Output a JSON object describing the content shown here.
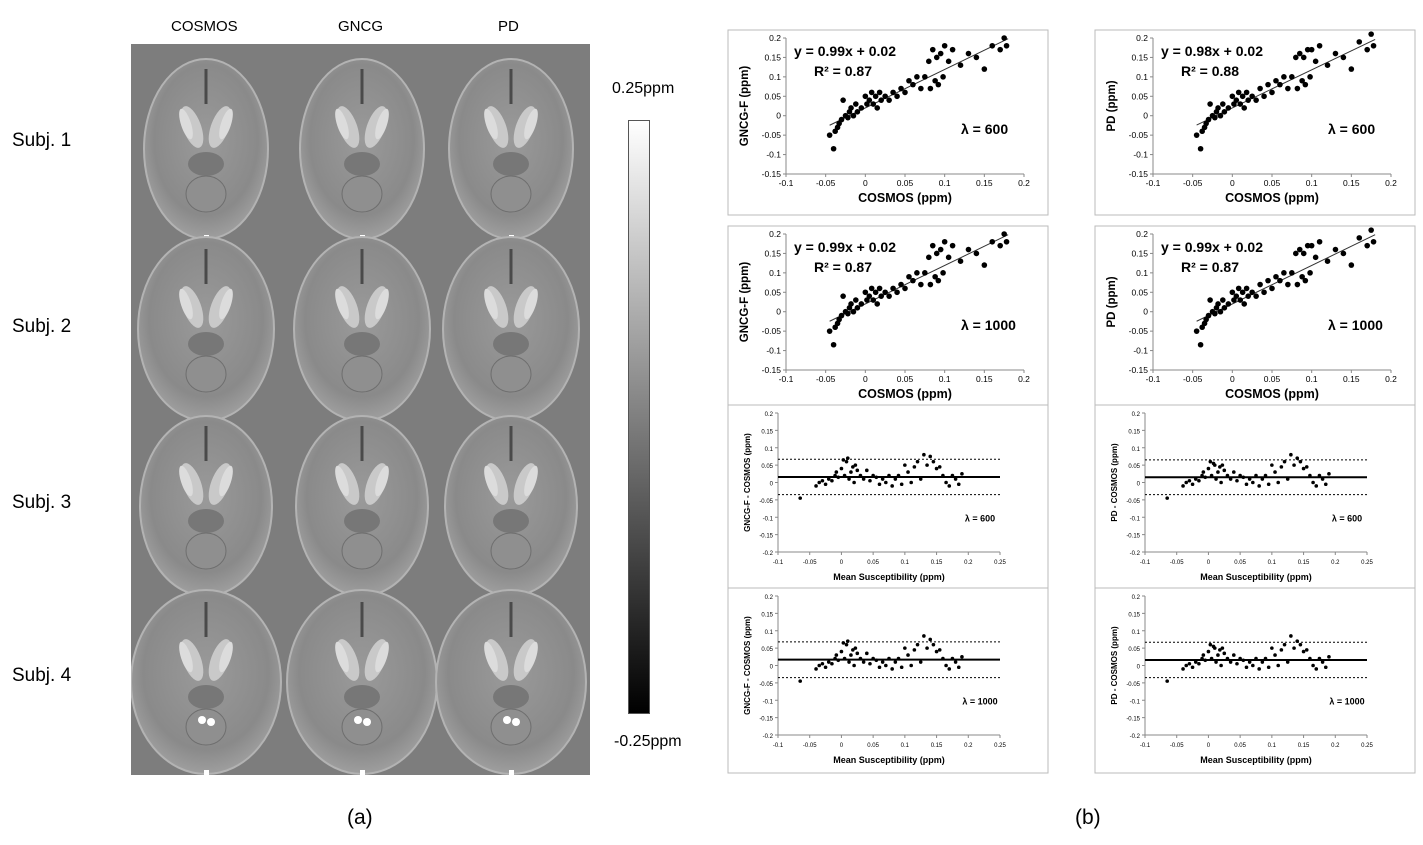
{
  "figure": {
    "panel_a": {
      "label": "(a)",
      "columns": [
        "COSMOS",
        "GNCG",
        "PD"
      ],
      "rows": [
        "Subj. 1",
        "Subj. 2",
        "Subj. 3",
        "Subj. 4"
      ],
      "colorbar": {
        "max_label": "0.25ppm",
        "min_label": "-0.25ppm"
      }
    },
    "panel_b": {
      "label": "(b)"
    }
  },
  "chart_data": [
    {
      "type": "scatter",
      "xlabel": "COSMOS (ppm)",
      "ylabel": "GNCG-F (ppm)",
      "xlim": [
        -0.1,
        0.2
      ],
      "ylim": [
        -0.15,
        0.2
      ],
      "xticks": [
        "-0.1",
        "-0.05",
        "0",
        "0.05",
        "0.1",
        "0.15",
        "0.2"
      ],
      "yticks": [
        "-0.15",
        "-0.1",
        "-0.05",
        "0",
        "0.05",
        "0.1",
        "0.15",
        "0.2"
      ],
      "annotations": [
        "y = 0.99x + 0.02",
        "R² = 0.87",
        "λ = 600"
      ],
      "fit": {
        "slope": 0.99,
        "intercept": 0.02
      },
      "x": [
        -0.045,
        -0.04,
        -0.038,
        -0.035,
        -0.033,
        -0.03,
        -0.028,
        -0.025,
        -0.022,
        -0.02,
        -0.018,
        -0.015,
        -0.012,
        -0.01,
        -0.005,
        0,
        0.002,
        0.005,
        0.008,
        0.01,
        0.013,
        0.015,
        0.018,
        0.02,
        0.025,
        0.03,
        0.035,
        0.04,
        0.045,
        0.05,
        0.055,
        0.06,
        0.065,
        0.07,
        0.075,
        0.08,
        0.082,
        0.085,
        0.088,
        0.09,
        0.092,
        0.095,
        0.098,
        0.1,
        0.105,
        0.11,
        0.12,
        0.13,
        0.14,
        0.15,
        0.16,
        0.17,
        0.175,
        0.178
      ],
      "y": [
        -0.05,
        -0.085,
        -0.04,
        -0.03,
        -0.02,
        -0.01,
        0.04,
        0,
        -0.005,
        0.01,
        0.02,
        0,
        0.03,
        0.01,
        0.02,
        0.05,
        0.03,
        0.04,
        0.06,
        0.03,
        0.05,
        0.02,
        0.06,
        0.04,
        0.05,
        0.04,
        0.06,
        0.05,
        0.07,
        0.06,
        0.09,
        0.08,
        0.1,
        0.07,
        0.1,
        0.14,
        0.07,
        0.17,
        0.09,
        0.15,
        0.08,
        0.16,
        0.1,
        0.18,
        0.14,
        0.17,
        0.13,
        0.16,
        0.15,
        0.12,
        0.18,
        0.17,
        0.2,
        0.18
      ]
    },
    {
      "type": "scatter",
      "xlabel": "COSMOS (ppm)",
      "ylabel": "PD (ppm)",
      "xlim": [
        -0.1,
        0.2
      ],
      "ylim": [
        -0.15,
        0.2
      ],
      "xticks": [
        "-0.1",
        "-0.05",
        "0",
        "0.05",
        "0.1",
        "0.15",
        "0.2"
      ],
      "yticks": [
        "-0.15",
        "-0.1",
        "-0.05",
        "0",
        "0.05",
        "0.1",
        "0.15",
        "0.2"
      ],
      "annotations": [
        "y = 0.98x + 0.02",
        "R² = 0.88",
        "λ = 600"
      ],
      "fit": {
        "slope": 0.98,
        "intercept": 0.02
      },
      "x": [
        -0.045,
        -0.04,
        -0.038,
        -0.035,
        -0.033,
        -0.03,
        -0.028,
        -0.025,
        -0.022,
        -0.02,
        -0.018,
        -0.015,
        -0.012,
        -0.01,
        -0.005,
        0,
        0.002,
        0.005,
        0.008,
        0.01,
        0.013,
        0.015,
        0.018,
        0.02,
        0.025,
        0.03,
        0.035,
        0.04,
        0.045,
        0.05,
        0.055,
        0.06,
        0.065,
        0.07,
        0.075,
        0.08,
        0.082,
        0.085,
        0.088,
        0.09,
        0.092,
        0.095,
        0.098,
        0.1,
        0.105,
        0.11,
        0.12,
        0.13,
        0.14,
        0.15,
        0.16,
        0.17,
        0.175,
        0.178
      ],
      "y": [
        -0.05,
        -0.085,
        -0.04,
        -0.03,
        -0.02,
        -0.01,
        0.03,
        0,
        -0.005,
        0.01,
        0.02,
        0,
        0.03,
        0.01,
        0.02,
        0.05,
        0.03,
        0.04,
        0.06,
        0.03,
        0.05,
        0.02,
        0.06,
        0.04,
        0.05,
        0.04,
        0.07,
        0.05,
        0.08,
        0.06,
        0.09,
        0.08,
        0.1,
        0.07,
        0.1,
        0.15,
        0.07,
        0.16,
        0.09,
        0.15,
        0.08,
        0.17,
        0.1,
        0.17,
        0.14,
        0.18,
        0.13,
        0.16,
        0.15,
        0.12,
        0.19,
        0.17,
        0.21,
        0.18
      ]
    },
    {
      "type": "scatter",
      "xlabel": "COSMOS (ppm)",
      "ylabel": "GNCG-F (ppm)",
      "xlim": [
        -0.1,
        0.2
      ],
      "ylim": [
        -0.15,
        0.2
      ],
      "xticks": [
        "-0.1",
        "-0.05",
        "0",
        "0.05",
        "0.1",
        "0.15",
        "0.2"
      ],
      "yticks": [
        "-0.15",
        "-0.1",
        "-0.05",
        "0",
        "0.05",
        "0.1",
        "0.15",
        "0.2"
      ],
      "annotations": [
        "y = 0.99x + 0.02",
        "R² = 0.87",
        "λ = 1000"
      ],
      "fit": {
        "slope": 0.99,
        "intercept": 0.02
      },
      "x": [
        -0.045,
        -0.04,
        -0.038,
        -0.035,
        -0.033,
        -0.03,
        -0.028,
        -0.025,
        -0.022,
        -0.02,
        -0.018,
        -0.015,
        -0.012,
        -0.01,
        -0.005,
        0,
        0.002,
        0.005,
        0.008,
        0.01,
        0.013,
        0.015,
        0.018,
        0.02,
        0.025,
        0.03,
        0.035,
        0.04,
        0.045,
        0.05,
        0.055,
        0.06,
        0.065,
        0.07,
        0.075,
        0.08,
        0.082,
        0.085,
        0.088,
        0.09,
        0.092,
        0.095,
        0.098,
        0.1,
        0.105,
        0.11,
        0.12,
        0.13,
        0.14,
        0.15,
        0.16,
        0.17,
        0.175,
        0.178
      ],
      "y": [
        -0.05,
        -0.085,
        -0.04,
        -0.03,
        -0.02,
        -0.01,
        0.04,
        0,
        -0.005,
        0.01,
        0.02,
        0,
        0.03,
        0.01,
        0.02,
        0.05,
        0.03,
        0.04,
        0.06,
        0.03,
        0.05,
        0.02,
        0.06,
        0.04,
        0.05,
        0.04,
        0.06,
        0.05,
        0.07,
        0.06,
        0.09,
        0.08,
        0.1,
        0.07,
        0.1,
        0.14,
        0.07,
        0.17,
        0.09,
        0.15,
        0.08,
        0.16,
        0.1,
        0.18,
        0.14,
        0.17,
        0.13,
        0.16,
        0.15,
        0.12,
        0.18,
        0.17,
        0.2,
        0.18
      ]
    },
    {
      "type": "scatter",
      "xlabel": "COSMOS (ppm)",
      "ylabel": "PD (ppm)",
      "xlim": [
        -0.1,
        0.2
      ],
      "ylim": [
        -0.15,
        0.2
      ],
      "xticks": [
        "-0.1",
        "-0.05",
        "0",
        "0.05",
        "0.1",
        "0.15",
        "0.2"
      ],
      "yticks": [
        "-0.15",
        "-0.1",
        "-0.05",
        "0",
        "0.05",
        "0.1",
        "0.15",
        "0.2"
      ],
      "annotations": [
        "y = 0.99x + 0.02",
        "R² = 0.87",
        "λ = 1000"
      ],
      "fit": {
        "slope": 0.99,
        "intercept": 0.02
      },
      "x": [
        -0.045,
        -0.04,
        -0.038,
        -0.035,
        -0.033,
        -0.03,
        -0.028,
        -0.025,
        -0.022,
        -0.02,
        -0.018,
        -0.015,
        -0.012,
        -0.01,
        -0.005,
        0,
        0.002,
        0.005,
        0.008,
        0.01,
        0.013,
        0.015,
        0.018,
        0.02,
        0.025,
        0.03,
        0.035,
        0.04,
        0.045,
        0.05,
        0.055,
        0.06,
        0.065,
        0.07,
        0.075,
        0.08,
        0.082,
        0.085,
        0.088,
        0.09,
        0.092,
        0.095,
        0.098,
        0.1,
        0.105,
        0.11,
        0.12,
        0.13,
        0.14,
        0.15,
        0.16,
        0.17,
        0.175,
        0.178
      ],
      "y": [
        -0.05,
        -0.085,
        -0.04,
        -0.03,
        -0.02,
        -0.01,
        0.03,
        0,
        -0.005,
        0.01,
        0.02,
        0,
        0.03,
        0.01,
        0.02,
        0.05,
        0.03,
        0.04,
        0.06,
        0.03,
        0.05,
        0.02,
        0.06,
        0.04,
        0.05,
        0.04,
        0.07,
        0.05,
        0.08,
        0.06,
        0.09,
        0.08,
        0.1,
        0.07,
        0.1,
        0.15,
        0.07,
        0.16,
        0.09,
        0.15,
        0.08,
        0.17,
        0.1,
        0.17,
        0.14,
        0.18,
        0.13,
        0.16,
        0.15,
        0.12,
        0.19,
        0.17,
        0.21,
        0.18
      ]
    },
    {
      "type": "scatter",
      "xlabel": "Mean Susceptibility (ppm)",
      "ylabel": "GNCG-F - COSMOS (ppm)",
      "xlim": [
        -0.1,
        0.25
      ],
      "ylim": [
        -0.2,
        0.2
      ],
      "xticks": [
        "-0.1",
        "-0.05",
        "0",
        "0.05",
        "0.1",
        "0.15",
        "0.2",
        "0.25"
      ],
      "yticks": [
        "-0.2",
        "-0.15",
        "-0.1",
        "-0.05",
        "0",
        "0.05",
        "0.1",
        "0.15",
        "0.2"
      ],
      "annotations": [
        "λ = 600"
      ],
      "hlines": {
        "mean": 0.016,
        "upper": 0.067,
        "lower": -0.035
      },
      "x": [
        -0.065,
        -0.04,
        -0.035,
        -0.03,
        -0.025,
        -0.02,
        -0.015,
        -0.01,
        -0.008,
        -0.005,
        0,
        0.003,
        0.005,
        0.008,
        0.01,
        0.012,
        0.015,
        0.018,
        0.02,
        0.022,
        0.025,
        0.03,
        0.035,
        0.04,
        0.045,
        0.05,
        0.055,
        0.06,
        0.065,
        0.07,
        0.075,
        0.08,
        0.085,
        0.09,
        0.095,
        0.1,
        0.105,
        0.11,
        0.115,
        0.12,
        0.125,
        0.13,
        0.135,
        0.14,
        0.145,
        0.15,
        0.155,
        0.16,
        0.165,
        0.17,
        0.175,
        0.18,
        0.185,
        0.19
      ],
      "y": [
        -0.045,
        -0.01,
        0.0,
        0.005,
        -0.005,
        0.01,
        0.005,
        0.02,
        0.03,
        0.015,
        0.04,
        0.065,
        0.02,
        0.06,
        0.07,
        0.01,
        0.03,
        0.045,
        0.0,
        0.05,
        0.035,
        0.02,
        0.01,
        0.035,
        0.005,
        0.02,
        0.015,
        -0.005,
        0.01,
        0.0,
        0.02,
        -0.01,
        0.01,
        0.02,
        -0.005,
        0.05,
        0.03,
        0.0,
        0.045,
        0.06,
        0.01,
        0.08,
        0.05,
        0.075,
        0.06,
        0.04,
        0.045,
        0.02,
        0.0,
        -0.01,
        0.02,
        0.01,
        -0.005,
        0.025
      ]
    },
    {
      "type": "scatter",
      "xlabel": "Mean Susceptibility (ppm)",
      "ylabel": "PD - COSMOS (ppm)",
      "xlim": [
        -0.1,
        0.25
      ],
      "ylim": [
        -0.2,
        0.2
      ],
      "xticks": [
        "-0.1",
        "-0.05",
        "0",
        "0.05",
        "0.1",
        "0.15",
        "0.2",
        "0.25"
      ],
      "yticks": [
        "-0.2",
        "-0.15",
        "-0.1",
        "-0.05",
        "0",
        "0.05",
        "0.1",
        "0.15",
        "0.2"
      ],
      "annotations": [
        "λ = 600"
      ],
      "hlines": {
        "mean": 0.015,
        "upper": 0.065,
        "lower": -0.035
      },
      "x": [
        -0.065,
        -0.04,
        -0.035,
        -0.03,
        -0.025,
        -0.02,
        -0.015,
        -0.01,
        -0.008,
        -0.005,
        0,
        0.003,
        0.005,
        0.008,
        0.01,
        0.012,
        0.015,
        0.018,
        0.02,
        0.022,
        0.025,
        0.03,
        0.035,
        0.04,
        0.045,
        0.05,
        0.055,
        0.06,
        0.065,
        0.07,
        0.075,
        0.08,
        0.085,
        0.09,
        0.095,
        0.1,
        0.105,
        0.11,
        0.115,
        0.12,
        0.125,
        0.13,
        0.135,
        0.14,
        0.145,
        0.15,
        0.155,
        0.16,
        0.165,
        0.17,
        0.175,
        0.18,
        0.185,
        0.19
      ],
      "y": [
        -0.045,
        -0.01,
        0.0,
        0.005,
        -0.005,
        0.01,
        0.005,
        0.02,
        0.03,
        0.015,
        0.04,
        0.06,
        0.02,
        0.055,
        0.05,
        0.01,
        0.03,
        0.045,
        0.0,
        0.05,
        0.035,
        0.02,
        0.01,
        0.03,
        0.005,
        0.02,
        0.015,
        -0.005,
        0.01,
        0.0,
        0.02,
        -0.01,
        0.01,
        0.02,
        -0.005,
        0.05,
        0.03,
        0.0,
        0.045,
        0.06,
        0.01,
        0.08,
        0.05,
        0.07,
        0.06,
        0.04,
        0.045,
        0.02,
        0.0,
        -0.01,
        0.02,
        0.01,
        -0.005,
        0.025
      ]
    },
    {
      "type": "scatter",
      "xlabel": "Mean Susceptibility (ppm)",
      "ylabel": "GNCG-F - COSMOS (ppm)",
      "xlim": [
        -0.1,
        0.25
      ],
      "ylim": [
        -0.2,
        0.2
      ],
      "xticks": [
        "-0.1",
        "-0.05",
        "0",
        "0.05",
        "0.1",
        "0.15",
        "0.2",
        "0.25"
      ],
      "yticks": [
        "-0.2",
        "-0.15",
        "-0.1",
        "-0.05",
        "0",
        "0.05",
        "0.1",
        "0.15",
        "0.2"
      ],
      "annotations": [
        "λ = 1000"
      ],
      "hlines": {
        "mean": 0.017,
        "upper": 0.068,
        "lower": -0.035
      },
      "x": [
        -0.065,
        -0.04,
        -0.035,
        -0.03,
        -0.025,
        -0.02,
        -0.015,
        -0.01,
        -0.008,
        -0.005,
        0,
        0.003,
        0.005,
        0.008,
        0.01,
        0.012,
        0.015,
        0.018,
        0.02,
        0.022,
        0.025,
        0.03,
        0.035,
        0.04,
        0.045,
        0.05,
        0.055,
        0.06,
        0.065,
        0.07,
        0.075,
        0.08,
        0.085,
        0.09,
        0.095,
        0.1,
        0.105,
        0.11,
        0.115,
        0.12,
        0.125,
        0.13,
        0.135,
        0.14,
        0.145,
        0.15,
        0.155,
        0.16,
        0.165,
        0.17,
        0.175,
        0.18,
        0.185,
        0.19
      ],
      "y": [
        -0.045,
        -0.01,
        0.0,
        0.005,
        -0.005,
        0.01,
        0.005,
        0.02,
        0.03,
        0.015,
        0.04,
        0.065,
        0.02,
        0.06,
        0.07,
        0.01,
        0.03,
        0.045,
        0.0,
        0.05,
        0.035,
        0.02,
        0.01,
        0.035,
        0.005,
        0.02,
        0.015,
        -0.005,
        0.01,
        0.0,
        0.02,
        -0.01,
        0.01,
        0.02,
        -0.005,
        0.05,
        0.03,
        0.0,
        0.045,
        0.06,
        0.01,
        0.085,
        0.05,
        0.075,
        0.06,
        0.04,
        0.045,
        0.02,
        0.0,
        -0.01,
        0.02,
        0.01,
        -0.005,
        0.025
      ]
    },
    {
      "type": "scatter",
      "xlabel": "Mean Susceptibility (ppm)",
      "ylabel": "PD - COSMOS (ppm)",
      "xlim": [
        -0.1,
        0.25
      ],
      "ylim": [
        -0.2,
        0.2
      ],
      "xticks": [
        "-0.1",
        "-0.05",
        "0",
        "0.05",
        "0.1",
        "0.15",
        "0.2",
        "0.25"
      ],
      "yticks": [
        "-0.2",
        "-0.15",
        "-0.1",
        "-0.05",
        "0",
        "0.05",
        "0.1",
        "0.15",
        "0.2"
      ],
      "annotations": [
        "λ = 1000"
      ],
      "hlines": {
        "mean": 0.016,
        "upper": 0.067,
        "lower": -0.035
      },
      "x": [
        -0.065,
        -0.04,
        -0.035,
        -0.03,
        -0.025,
        -0.02,
        -0.015,
        -0.01,
        -0.008,
        -0.005,
        0,
        0.003,
        0.005,
        0.008,
        0.01,
        0.012,
        0.015,
        0.018,
        0.02,
        0.022,
        0.025,
        0.03,
        0.035,
        0.04,
        0.045,
        0.05,
        0.055,
        0.06,
        0.065,
        0.07,
        0.075,
        0.08,
        0.085,
        0.09,
        0.095,
        0.1,
        0.105,
        0.11,
        0.115,
        0.12,
        0.125,
        0.13,
        0.135,
        0.14,
        0.145,
        0.15,
        0.155,
        0.16,
        0.165,
        0.17,
        0.175,
        0.18,
        0.185,
        0.19
      ],
      "y": [
        -0.045,
        -0.01,
        0.0,
        0.005,
        -0.005,
        0.01,
        0.005,
        0.02,
        0.03,
        0.015,
        0.04,
        0.06,
        0.02,
        0.055,
        0.05,
        0.01,
        0.03,
        0.045,
        0.0,
        0.05,
        0.035,
        0.02,
        0.01,
        0.03,
        0.005,
        0.02,
        0.015,
        -0.005,
        0.01,
        0.0,
        0.02,
        -0.01,
        0.01,
        0.02,
        -0.005,
        0.05,
        0.03,
        0.0,
        0.045,
        0.06,
        0.01,
        0.085,
        0.05,
        0.07,
        0.06,
        0.04,
        0.045,
        0.02,
        0.0,
        -0.01,
        0.02,
        0.01,
        -0.005,
        0.025
      ]
    }
  ]
}
